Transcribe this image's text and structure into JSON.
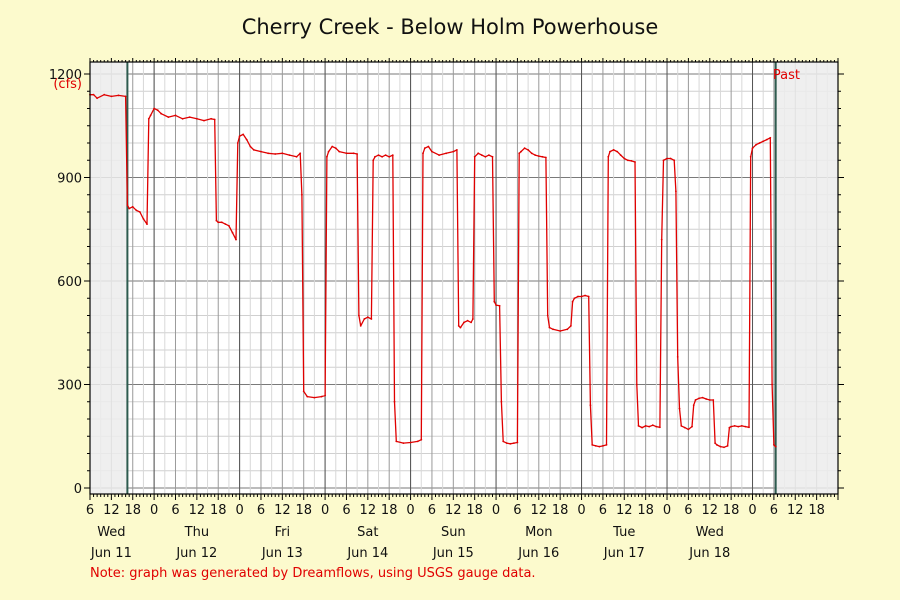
{
  "chart_data": {
    "type": "line",
    "title": "Cherry Creek - Below Holm Powerhouse",
    "ylabel": "(cfs)",
    "ylim": [
      0,
      1200
    ],
    "yticks": [
      0,
      300,
      600,
      900,
      1200
    ],
    "xlim_hours": [
      0,
      210
    ],
    "x_hour_ticks": [
      "6",
      "12",
      "18",
      "0",
      "6",
      "12",
      "18",
      "0",
      "6",
      "12",
      "18",
      "0",
      "6",
      "12",
      "18",
      "0",
      "6",
      "12",
      "18",
      "0",
      "6",
      "12",
      "18",
      "0",
      "6",
      "12",
      "18",
      "0",
      "6",
      "12",
      "18",
      "0",
      "6",
      "12",
      "18"
    ],
    "day_labels": [
      {
        "day": "Wed",
        "date": "Jun 11"
      },
      {
        "day": "Thu",
        "date": "Jun 12"
      },
      {
        "day": "Fri",
        "date": "Jun 13"
      },
      {
        "day": "Sat",
        "date": "Jun 14"
      },
      {
        "day": "Sun",
        "date": "Jun 15"
      },
      {
        "day": "Mon",
        "date": "Jun 16"
      },
      {
        "day": "Tue",
        "date": "Jun 17"
      },
      {
        "day": "Wed",
        "date": "Jun 18"
      }
    ],
    "past_label": "Past",
    "grid": true,
    "series": [
      {
        "color": "#e00000",
        "points": [
          [
            0,
            1140
          ],
          [
            1,
            1140
          ],
          [
            2,
            1130
          ],
          [
            4,
            1140
          ],
          [
            6,
            1135
          ],
          [
            8,
            1138
          ],
          [
            10,
            1135
          ],
          [
            10.5,
            820
          ],
          [
            11,
            810
          ],
          [
            12,
            815
          ],
          [
            13,
            805
          ],
          [
            14,
            800
          ],
          [
            15,
            780
          ],
          [
            16,
            765
          ],
          [
            16.5,
            1070
          ],
          [
            17,
            1080
          ],
          [
            18,
            1100
          ],
          [
            19,
            1095
          ],
          [
            20,
            1085
          ],
          [
            22,
            1075
          ],
          [
            24,
            1080
          ],
          [
            26,
            1070
          ],
          [
            28,
            1075
          ],
          [
            30,
            1070
          ],
          [
            32,
            1065
          ],
          [
            34,
            1070
          ],
          [
            35,
            1068
          ],
          [
            35.5,
            775
          ],
          [
            36,
            770
          ],
          [
            37,
            770
          ],
          [
            38,
            765
          ],
          [
            39,
            760
          ],
          [
            40,
            740
          ],
          [
            41,
            720
          ],
          [
            41.5,
            1000
          ],
          [
            42,
            1020
          ],
          [
            43,
            1025
          ],
          [
            44,
            1010
          ],
          [
            45,
            990
          ],
          [
            46,
            980
          ],
          [
            48,
            975
          ],
          [
            50,
            970
          ],
          [
            52,
            968
          ],
          [
            54,
            970
          ],
          [
            56,
            965
          ],
          [
            58,
            960
          ],
          [
            59,
            970
          ],
          [
            59.5,
            850
          ],
          [
            60,
            280
          ],
          [
            61,
            265
          ],
          [
            63,
            262
          ],
          [
            65,
            265
          ],
          [
            66,
            268
          ],
          [
            66.5,
            960
          ],
          [
            67,
            975
          ],
          [
            68,
            990
          ],
          [
            69,
            985
          ],
          [
            70,
            975
          ],
          [
            72,
            970
          ],
          [
            74,
            970
          ],
          [
            75,
            968
          ],
          [
            75.5,
            500
          ],
          [
            76,
            470
          ],
          [
            77,
            490
          ],
          [
            78,
            495
          ],
          [
            79,
            490
          ],
          [
            79.5,
            950
          ],
          [
            80,
            960
          ],
          [
            81,
            965
          ],
          [
            82,
            960
          ],
          [
            83,
            965
          ],
          [
            84,
            960
          ],
          [
            85,
            965
          ],
          [
            85.5,
            250
          ],
          [
            86,
            135
          ],
          [
            88,
            130
          ],
          [
            90,
            132
          ],
          [
            92,
            135
          ],
          [
            93,
            140
          ],
          [
            93.5,
            970
          ],
          [
            94,
            985
          ],
          [
            95,
            990
          ],
          [
            96,
            975
          ],
          [
            98,
            965
          ],
          [
            100,
            970
          ],
          [
            102,
            975
          ],
          [
            103,
            980
          ],
          [
            103.5,
            470
          ],
          [
            104,
            465
          ],
          [
            105,
            480
          ],
          [
            106,
            485
          ],
          [
            107,
            480
          ],
          [
            107.5,
            490
          ],
          [
            108,
            960
          ],
          [
            109,
            970
          ],
          [
            110,
            965
          ],
          [
            111,
            960
          ],
          [
            112,
            965
          ],
          [
            113,
            960
          ],
          [
            113.5,
            540
          ],
          [
            114,
            530
          ],
          [
            115,
            528
          ],
          [
            115.5,
            250
          ],
          [
            116,
            135
          ],
          [
            117,
            130
          ],
          [
            118,
            128
          ],
          [
            119,
            130
          ],
          [
            120,
            132
          ],
          [
            120.5,
            970
          ],
          [
            121,
            975
          ],
          [
            122,
            985
          ],
          [
            123,
            980
          ],
          [
            124,
            970
          ],
          [
            125,
            965
          ],
          [
            126,
            962
          ],
          [
            127,
            960
          ],
          [
            128,
            958
          ],
          [
            128.5,
            500
          ],
          [
            129,
            465
          ],
          [
            130,
            460
          ],
          [
            132,
            455
          ],
          [
            134,
            460
          ],
          [
            135,
            470
          ],
          [
            135.5,
            540
          ],
          [
            136,
            550
          ],
          [
            137,
            555
          ],
          [
            138,
            555
          ],
          [
            139,
            558
          ],
          [
            140,
            555
          ],
          [
            140.5,
            240
          ],
          [
            141,
            125
          ],
          [
            142,
            122
          ],
          [
            143,
            120
          ],
          [
            144,
            122
          ],
          [
            145,
            125
          ],
          [
            145.5,
            960
          ],
          [
            146,
            975
          ],
          [
            147,
            980
          ],
          [
            148,
            975
          ],
          [
            149,
            965
          ],
          [
            150,
            955
          ],
          [
            151,
            950
          ],
          [
            152,
            948
          ],
          [
            153,
            945
          ],
          [
            153.5,
            300
          ],
          [
            154,
            180
          ],
          [
            155,
            175
          ],
          [
            156,
            180
          ],
          [
            157,
            178
          ],
          [
            158,
            182
          ],
          [
            159,
            178
          ],
          [
            160,
            176
          ],
          [
            160.5,
            720
          ],
          [
            161,
            950
          ],
          [
            162,
            955
          ],
          [
            163,
            955
          ],
          [
            164,
            950
          ],
          [
            164.5,
            860
          ],
          [
            165,
            380
          ],
          [
            165.5,
            230
          ],
          [
            166,
            180
          ],
          [
            167,
            175
          ],
          [
            168,
            170
          ],
          [
            169,
            178
          ],
          [
            169.5,
            240
          ],
          [
            170,
            255
          ],
          [
            171,
            260
          ],
          [
            172,
            262
          ],
          [
            173,
            258
          ],
          [
            174,
            255
          ],
          [
            175,
            255
          ],
          [
            175.5,
            130
          ],
          [
            176,
            125
          ],
          [
            177,
            120
          ],
          [
            178,
            118
          ],
          [
            179,
            122
          ],
          [
            179.5,
            175
          ],
          [
            180,
            178
          ],
          [
            181,
            180
          ],
          [
            182,
            178
          ],
          [
            183,
            180
          ],
          [
            184,
            178
          ],
          [
            185,
            176
          ],
          [
            185.5,
            960
          ],
          [
            186,
            985
          ],
          [
            187,
            995
          ],
          [
            188,
            1000
          ],
          [
            189,
            1005
          ],
          [
            190,
            1010
          ],
          [
            191,
            1015
          ],
          [
            191.5,
            300
          ],
          [
            192,
            125
          ],
          [
            192.5,
            120
          ]
        ]
      }
    ]
  },
  "note": "Note: graph was generated by Dreamflows, using USGS gauge data."
}
